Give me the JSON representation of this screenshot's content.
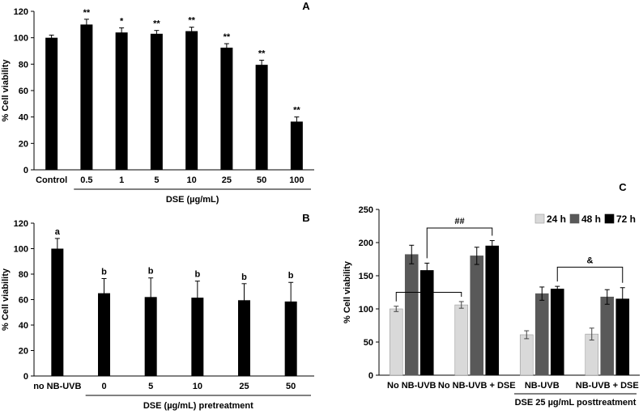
{
  "chart_data": [
    {
      "id": "A",
      "type": "bar",
      "panel_label": "A",
      "categories": [
        "Control",
        "0.5",
        "1",
        "5",
        "10",
        "25",
        "50",
        "100"
      ],
      "values": [
        100,
        110,
        104,
        103,
        105,
        92.5,
        79.5,
        36.5
      ],
      "errors": [
        2,
        4,
        3.5,
        2.5,
        3,
        3,
        3.5,
        3.5
      ],
      "annotations": [
        "",
        "**",
        "*",
        "**",
        "**",
        "**",
        "**",
        "**"
      ],
      "xlabel": "DSE  (µg/mL)",
      "ylabel": "% Cell viability",
      "ylim": [
        0,
        120
      ],
      "yticks": [
        0,
        20,
        40,
        60,
        80,
        100,
        120
      ],
      "colors": {
        "bar": "#000000"
      }
    },
    {
      "id": "B",
      "type": "bar",
      "panel_label": "B",
      "categories": [
        "no NB-UVB",
        "0",
        "5",
        "10",
        "25",
        "50"
      ],
      "values": [
        100,
        65,
        62,
        61.5,
        59.5,
        58.5
      ],
      "errors": [
        8,
        11.5,
        15,
        13,
        13,
        15
      ],
      "annotations": [
        "a",
        "b",
        "b",
        "b",
        "b",
        "b"
      ],
      "xlabel": "DSE (µg/mL) pretreatment",
      "ylabel": "% Cell viability",
      "ylim": [
        0,
        120
      ],
      "yticks": [
        0,
        20,
        40,
        60,
        80,
        100,
        120
      ],
      "colors": {
        "bar": "#000000"
      }
    },
    {
      "id": "C",
      "type": "bar",
      "panel_label": "C",
      "categories": [
        "No NB-UVB",
        "No NB-UVB + DSE",
        "NB-UVB",
        "NB-UVB + DSE"
      ],
      "series": [
        {
          "name": "24 h",
          "values": [
            100,
            106,
            61,
            62
          ],
          "errors": [
            4,
            5,
            6,
            9
          ],
          "color": "#d9d9d9"
        },
        {
          "name": "48 h",
          "values": [
            182,
            180,
            123,
            118
          ],
          "errors": [
            14,
            13,
            10,
            11
          ],
          "color": "#595959"
        },
        {
          "name": "72 h",
          "values": [
            158,
            195,
            130,
            115
          ],
          "errors": [
            11,
            8,
            4,
            17
          ],
          "color": "#000000"
        }
      ],
      "xlabel": "DSE 25 µg/mL posttreatment",
      "ylabel": "% Cell viability",
      "ylim": [
        0,
        250
      ],
      "yticks": [
        0,
        50,
        100,
        150,
        200,
        250
      ],
      "legend": "top-right",
      "brackets": [
        {
          "label": "*",
          "from_group": 0,
          "to_group": 1,
          "series": 0
        },
        {
          "label": "##",
          "from_group": 0,
          "to_group": 1,
          "series": 2
        },
        {
          "label": "&",
          "from_group": 2,
          "to_group": 3,
          "series": 2
        }
      ]
    }
  ]
}
